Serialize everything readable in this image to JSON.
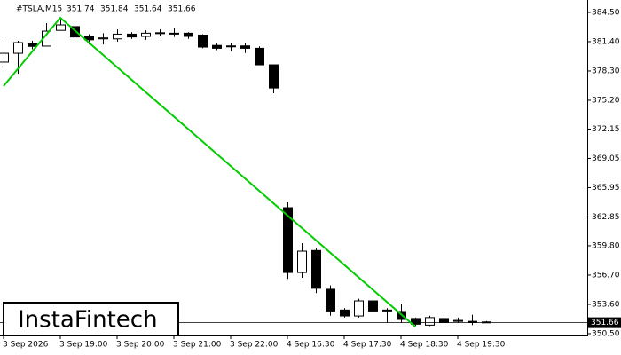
{
  "chart_data": {
    "type": "candlestick",
    "symbol": "#TSLA,M15",
    "watermark": "InstaFintech",
    "categories": [
      "3 Sep 2026",
      null,
      null,
      null,
      "3 Sep 19:00",
      null,
      null,
      null,
      "3 Sep 20:00",
      null,
      null,
      null,
      "3 Sep 21:00",
      null,
      null,
      null,
      "3 Sep 22:00",
      null,
      null,
      null,
      "4 Sep 16:30",
      null,
      null,
      null,
      "4 Sep 17:30",
      null,
      null,
      null,
      "4 Sep 18:30",
      null,
      null,
      null,
      "4 Sep 19:30",
      null,
      null
    ],
    "open": [
      379.24,
      380.17,
      381.2,
      380.93,
      382.6,
      383.0,
      381.96,
      381.7,
      381.7,
      382.2,
      381.96,
      382.3,
      382.3,
      382.3,
      382.1,
      381.0,
      380.95,
      380.95,
      380.7,
      378.95,
      363.83,
      356.97,
      359.3,
      355.2,
      353.0,
      352.37,
      353.97,
      353.0,
      352.85,
      352.1,
      351.4,
      352.1,
      351.8,
      351.8,
      351.74
    ],
    "high": [
      381.4,
      381.49,
      381.5,
      383.37,
      383.94,
      383.2,
      382.2,
      382.3,
      382.7,
      382.4,
      382.6,
      382.7,
      382.8,
      382.4,
      382.2,
      381.2,
      381.3,
      381.3,
      380.9,
      378.95,
      364.4,
      360.08,
      359.5,
      355.6,
      353.2,
      354.2,
      355.5,
      353.2,
      353.6,
      352.2,
      352.4,
      352.5,
      352.2,
      352.5,
      351.84
    ],
    "low": [
      378.77,
      378.0,
      380.6,
      380.93,
      382.6,
      381.7,
      381.1,
      381.1,
      381.4,
      381.7,
      381.6,
      381.96,
      381.9,
      381.7,
      380.7,
      380.5,
      380.4,
      380.2,
      378.95,
      375.95,
      356.3,
      356.41,
      354.8,
      352.4,
      352.2,
      352.2,
      352.9,
      351.7,
      351.7,
      351.3,
      351.3,
      351.3,
      351.7,
      351.4,
      351.64
    ],
    "close": [
      380.17,
      381.3,
      380.9,
      382.52,
      383.18,
      381.9,
      381.6,
      381.8,
      382.2,
      381.9,
      382.3,
      382.35,
      382.25,
      381.96,
      380.83,
      380.7,
      380.9,
      380.7,
      378.95,
      376.5,
      356.97,
      359.23,
      355.3,
      352.9,
      352.37,
      353.97,
      352.9,
      352.95,
      352.0,
      351.5,
      352.2,
      351.7,
      351.9,
      351.75,
      351.66
    ],
    "pattern_line": {
      "color": "#00cc00",
      "indices": [
        0,
        4,
        29
      ],
      "values": [
        376.7,
        383.93,
        351.25
      ]
    },
    "ylim": [
      350.31,
      385.81
    ],
    "yticks": [
      {
        "value": 384.5,
        "label": "384.50"
      },
      {
        "value": 381.4,
        "label": "381.40"
      },
      {
        "value": 378.3,
        "label": "378.30"
      },
      {
        "value": 375.2,
        "label": "375.20"
      },
      372.15,
      369.05,
      365.95,
      362.85,
      {
        "value": 359.8,
        "label": "359.80"
      },
      {
        "value": 356.7,
        "label": "356.70"
      },
      {
        "value": 353.6,
        "label": "353.60"
      },
      {
        "value": 350.5,
        "label": "350.50"
      }
    ]
  }
}
